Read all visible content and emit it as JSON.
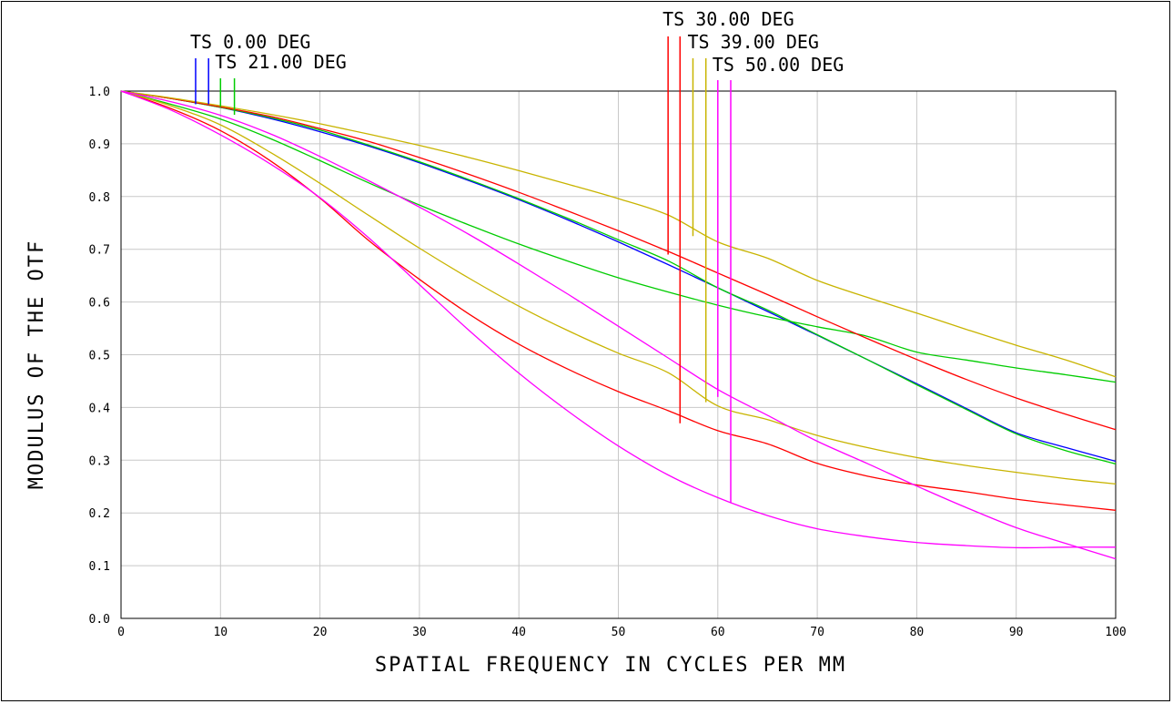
{
  "chart_data": {
    "type": "line",
    "title": "",
    "xlabel": "SPATIAL FREQUENCY IN CYCLES PER MM",
    "ylabel": "MODULUS OF THE OTF",
    "xlim": [
      0,
      100
    ],
    "ylim": [
      0,
      1
    ],
    "x_ticks": [
      "0",
      "10",
      "20",
      "30",
      "40",
      "50",
      "60",
      "70",
      "80",
      "90",
      "100"
    ],
    "y_ticks": [
      "0.0",
      "0.1",
      "0.2",
      "0.3",
      "0.4",
      "0.5",
      "0.6",
      "0.7",
      "0.8",
      "0.9",
      "1.0"
    ],
    "grid": true,
    "field_labels": [
      {
        "text": "TS 0.00 DEG",
        "color": "#0000ff",
        "marker_x": [
          7.5,
          8.8
        ],
        "marker_y_end": [
          0.975,
          0.975
        ]
      },
      {
        "text": "TS 21.00 DEG",
        "color": "#00cc00",
        "marker_x": [
          10.0,
          11.4
        ],
        "marker_y_end": [
          0.97,
          0.955
        ]
      },
      {
        "text": "TS 30.00 DEG",
        "color": "#ff0000",
        "marker_x": [
          55.0,
          56.2
        ],
        "marker_y_end": [
          0.69,
          0.37
        ]
      },
      {
        "text": "TS 39.00 DEG",
        "color": "#c8b400",
        "marker_x": [
          57.5,
          58.8
        ],
        "marker_y_end": [
          0.725,
          0.41
        ]
      },
      {
        "text": "TS 50.00 DEG",
        "color": "#ff00ff",
        "marker_x": [
          60.0,
          61.3
        ],
        "marker_y_end": [
          0.42,
          0.22
        ]
      }
    ],
    "x": [
      0,
      5,
      10,
      15,
      20,
      25,
      30,
      35,
      40,
      45,
      50,
      55,
      60,
      65,
      70,
      75,
      80,
      85,
      90,
      95,
      100
    ],
    "series": [
      {
        "color": "#0000ff",
        "values": [
          1.0,
          0.986,
          0.969,
          0.948,
          0.923,
          0.895,
          0.864,
          0.83,
          0.794,
          0.755,
          0.714,
          0.671,
          0.627,
          0.582,
          0.537,
          0.491,
          0.445,
          0.398,
          0.352,
          0.324,
          0.298
        ]
      },
      {
        "color": "#00cc00",
        "values": [
          1.0,
          0.986,
          0.969,
          0.95,
          0.926,
          0.897,
          0.866,
          0.832,
          0.796,
          0.758,
          0.718,
          0.678,
          0.627,
          0.585,
          0.538,
          0.491,
          0.443,
          0.396,
          0.35,
          0.318,
          0.293
        ]
      },
      {
        "color": "#00cc00",
        "values": [
          1.0,
          0.975,
          0.947,
          0.91,
          0.868,
          0.825,
          0.784,
          0.746,
          0.71,
          0.677,
          0.646,
          0.619,
          0.594,
          0.572,
          0.553,
          0.535,
          0.505,
          0.49,
          0.475,
          0.462,
          0.448
        ]
      },
      {
        "color": "#ff0000",
        "values": [
          1.0,
          0.986,
          0.97,
          0.952,
          0.929,
          0.904,
          0.874,
          0.842,
          0.808,
          0.772,
          0.735,
          0.696,
          0.655,
          0.614,
          0.572,
          0.531,
          0.491,
          0.453,
          0.418,
          0.387,
          0.358
        ]
      },
      {
        "color": "#ff0000",
        "values": [
          1.0,
          0.967,
          0.925,
          0.868,
          0.797,
          0.715,
          0.643,
          0.577,
          0.52,
          0.472,
          0.43,
          0.394,
          0.356,
          0.331,
          0.294,
          0.27,
          0.253,
          0.24,
          0.226,
          0.215,
          0.205
        ]
      },
      {
        "color": "#c8b400",
        "values": [
          1.0,
          0.987,
          0.972,
          0.956,
          0.938,
          0.918,
          0.897,
          0.874,
          0.849,
          0.823,
          0.796,
          0.765,
          0.714,
          0.683,
          0.641,
          0.609,
          0.579,
          0.548,
          0.518,
          0.49,
          0.458
        ]
      },
      {
        "color": "#c8b400",
        "values": [
          1.0,
          0.972,
          0.936,
          0.884,
          0.825,
          0.763,
          0.702,
          0.645,
          0.592,
          0.545,
          0.503,
          0.466,
          0.403,
          0.377,
          0.347,
          0.324,
          0.305,
          0.29,
          0.277,
          0.265,
          0.255
        ]
      },
      {
        "color": "#ff00ff",
        "values": [
          1.0,
          0.964,
          0.917,
          0.862,
          0.798,
          0.72,
          0.633,
          0.546,
          0.465,
          0.392,
          0.327,
          0.272,
          0.229,
          0.195,
          0.17,
          0.155,
          0.144,
          0.138,
          0.134,
          0.135,
          0.135
        ]
      },
      {
        "color": "#ff00ff",
        "values": [
          1.0,
          0.98,
          0.954,
          0.919,
          0.876,
          0.829,
          0.78,
          0.728,
          0.672,
          0.614,
          0.554,
          0.494,
          0.434,
          0.385,
          0.336,
          0.294,
          0.251,
          0.21,
          0.172,
          0.142,
          0.113
        ]
      }
    ]
  }
}
